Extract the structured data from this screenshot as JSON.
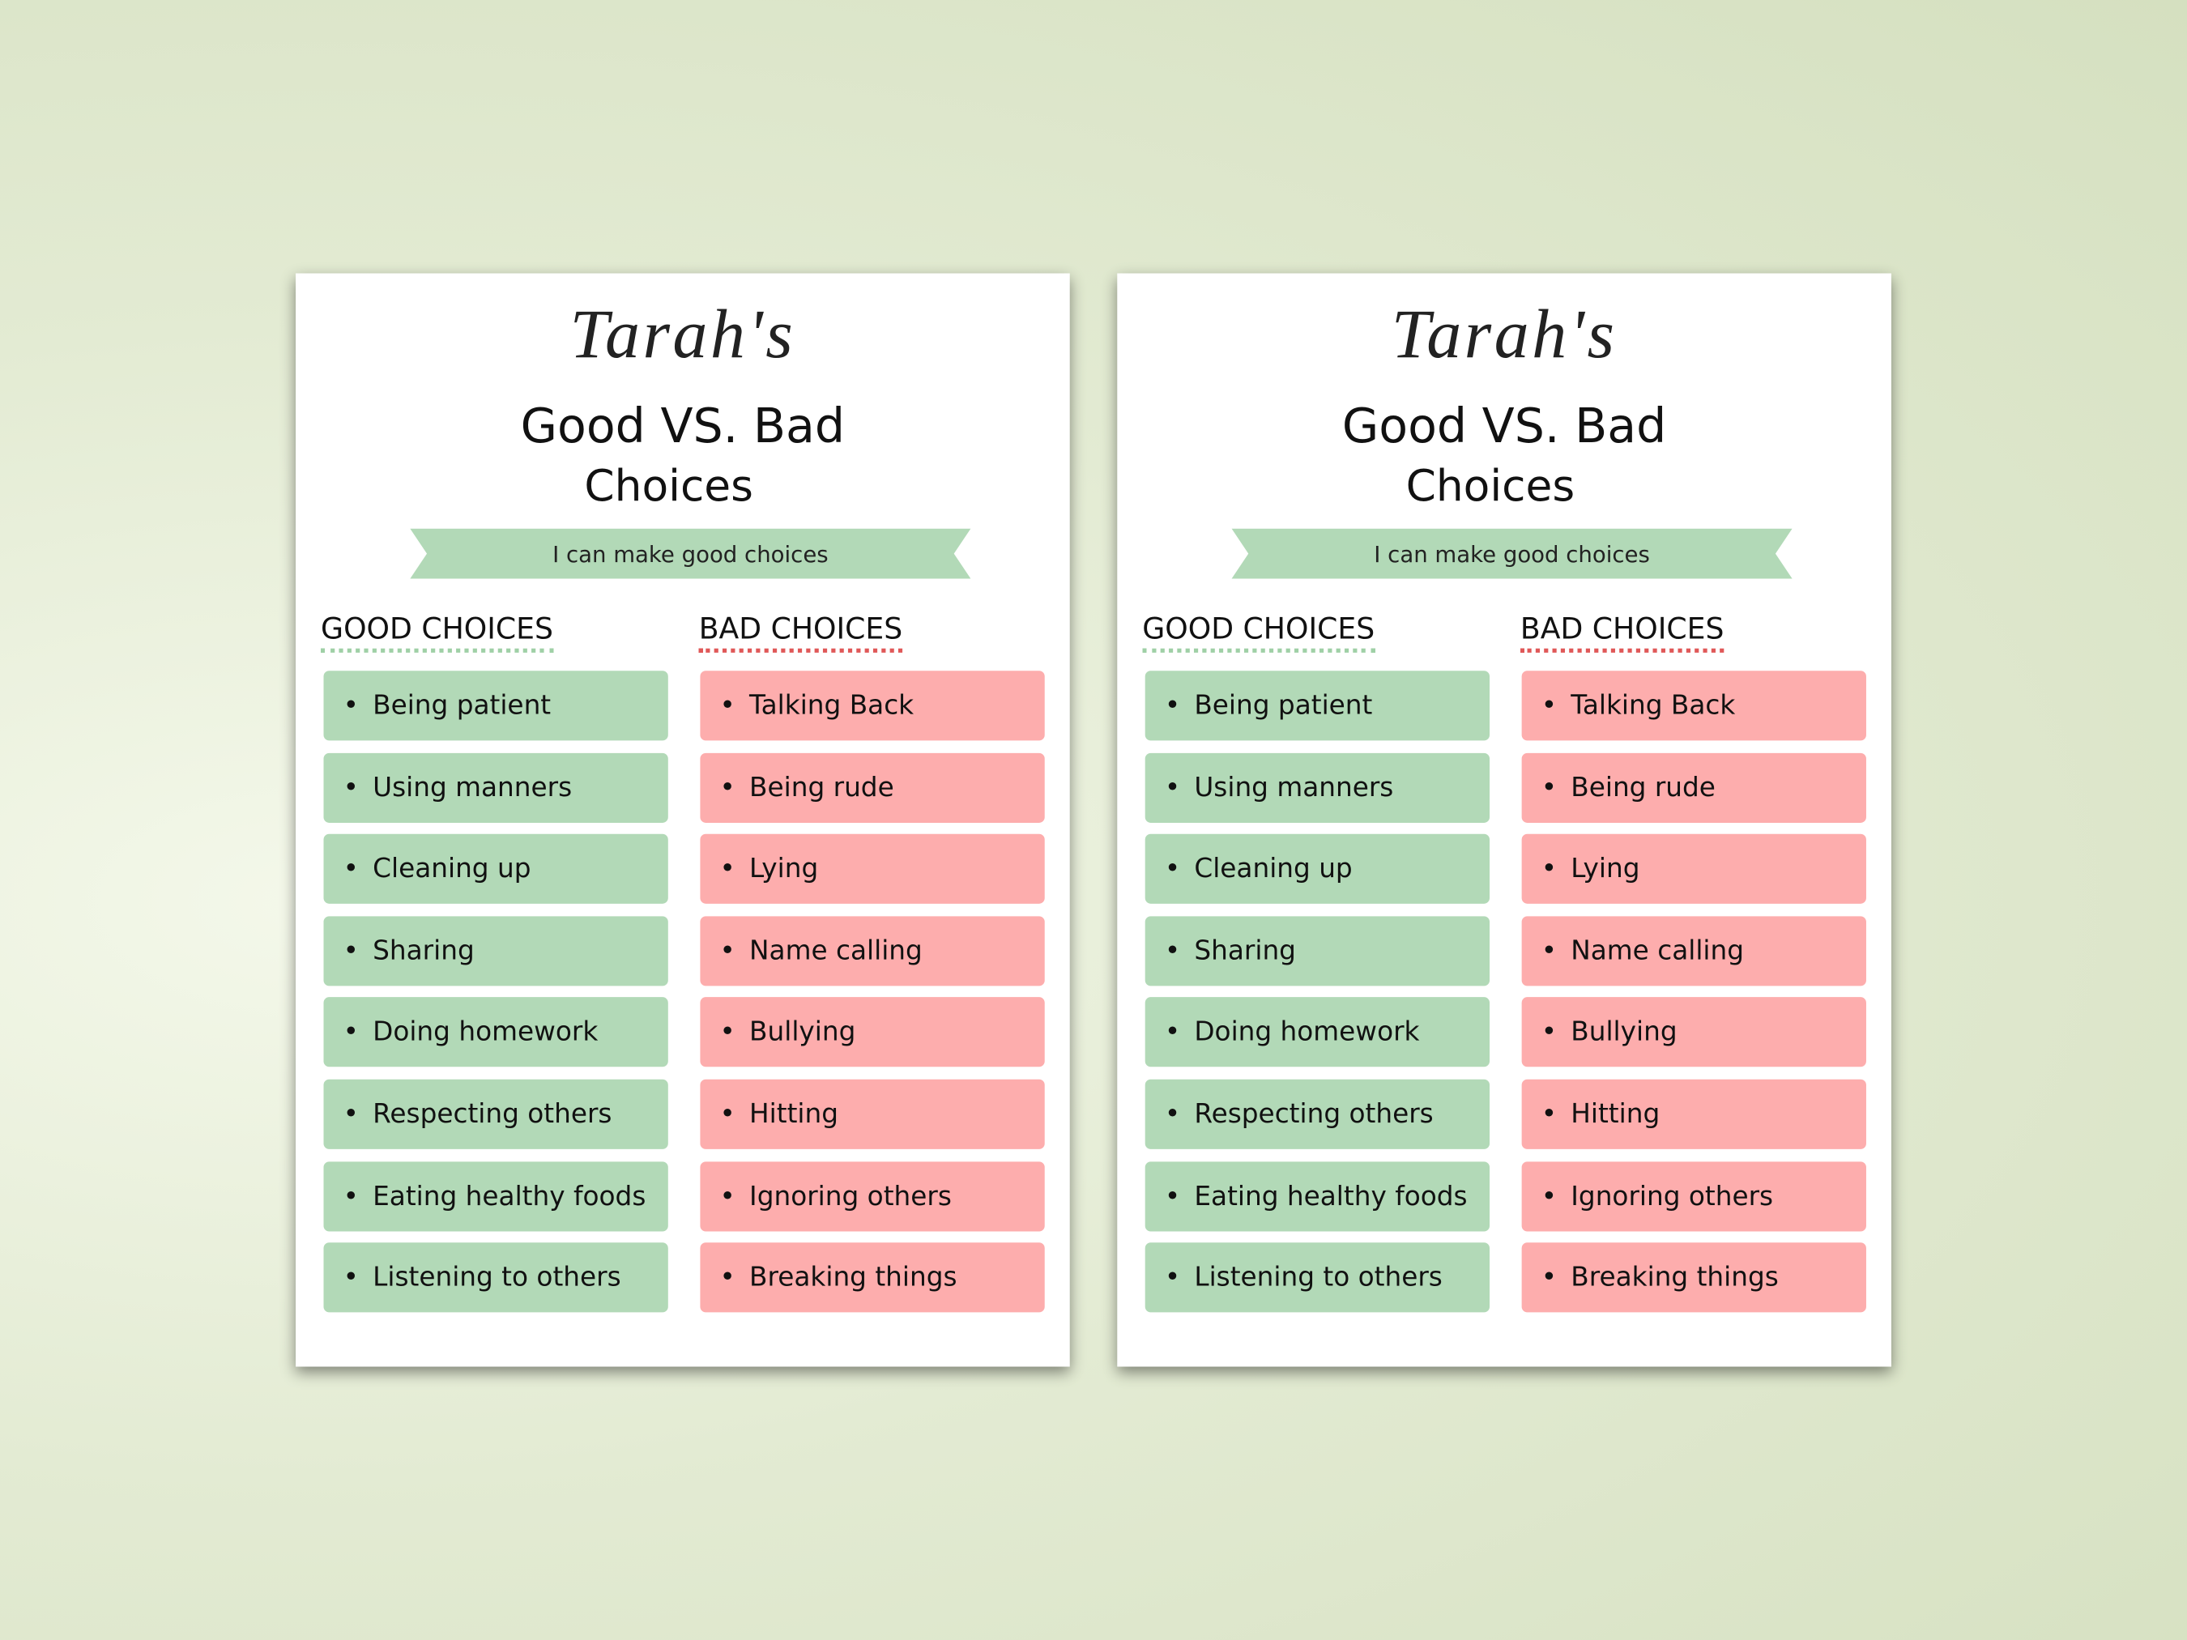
{
  "cards": [
    {
      "name": "Tarah's",
      "title": "Good VS. Bad",
      "subtitle": "Choices",
      "banner": "I can make good choices",
      "good_heading": "GOOD CHOICES",
      "bad_heading": "BAD CHOICES",
      "good": [
        "Being patient",
        "Using manners",
        "Cleaning up",
        "Sharing",
        "Doing homework",
        "Respecting others",
        "Eating healthy foods",
        "Listening to others"
      ],
      "bad": [
        "Talking Back",
        "Being rude",
        "Lying",
        "Name calling",
        "Bullying",
        "Hitting",
        "Ignoring others",
        "Breaking things"
      ]
    },
    {
      "name": "Tarah's",
      "title": "Good VS. Bad",
      "subtitle": "Choices",
      "banner": "I can make good choices",
      "good_heading": "GOOD CHOICES",
      "bad_heading": "BAD CHOICES",
      "good": [
        "Being patient",
        "Using manners",
        "Cleaning up",
        "Sharing",
        "Doing homework",
        "Respecting others",
        "Eating healthy foods",
        "Listening to others"
      ],
      "bad": [
        "Talking Back",
        "Being rude",
        "Lying",
        "Name calling",
        "Bullying",
        "Hitting",
        "Ignoring others",
        "Breaking things"
      ]
    }
  ]
}
